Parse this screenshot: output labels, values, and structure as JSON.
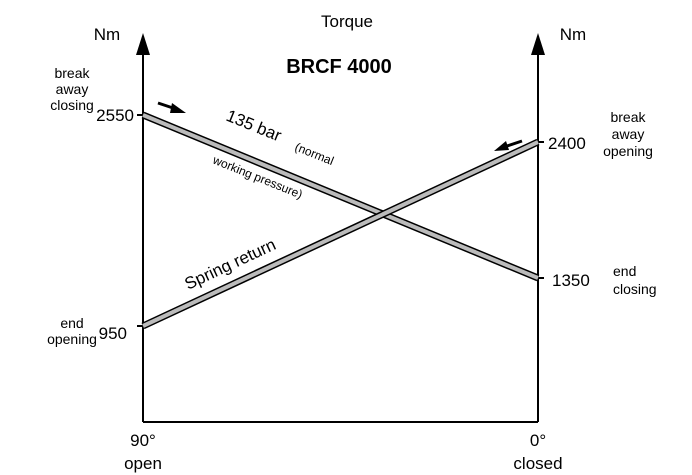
{
  "title": "Torque",
  "model": "BRCF 4000",
  "left_axis": {
    "unit": "Nm",
    "end_label": "90°",
    "end_caption": "open",
    "top_point": {
      "value": "2550",
      "caption": [
        "break",
        "away",
        "closing"
      ]
    },
    "bottom_point": {
      "value": "950",
      "caption": [
        "end",
        "opening"
      ]
    }
  },
  "right_axis": {
    "unit": "Nm",
    "end_label": "0°",
    "end_caption": "closed",
    "top_point": {
      "value": "2400",
      "caption": [
        "break",
        "away",
        "opening"
      ]
    },
    "bottom_point": {
      "value": "1350",
      "caption": [
        "end",
        "closing"
      ]
    }
  },
  "lines": [
    {
      "label": "135 bar",
      "note": "(normal",
      "note2": "working pressure)"
    },
    {
      "label": "Spring return"
    }
  ]
}
